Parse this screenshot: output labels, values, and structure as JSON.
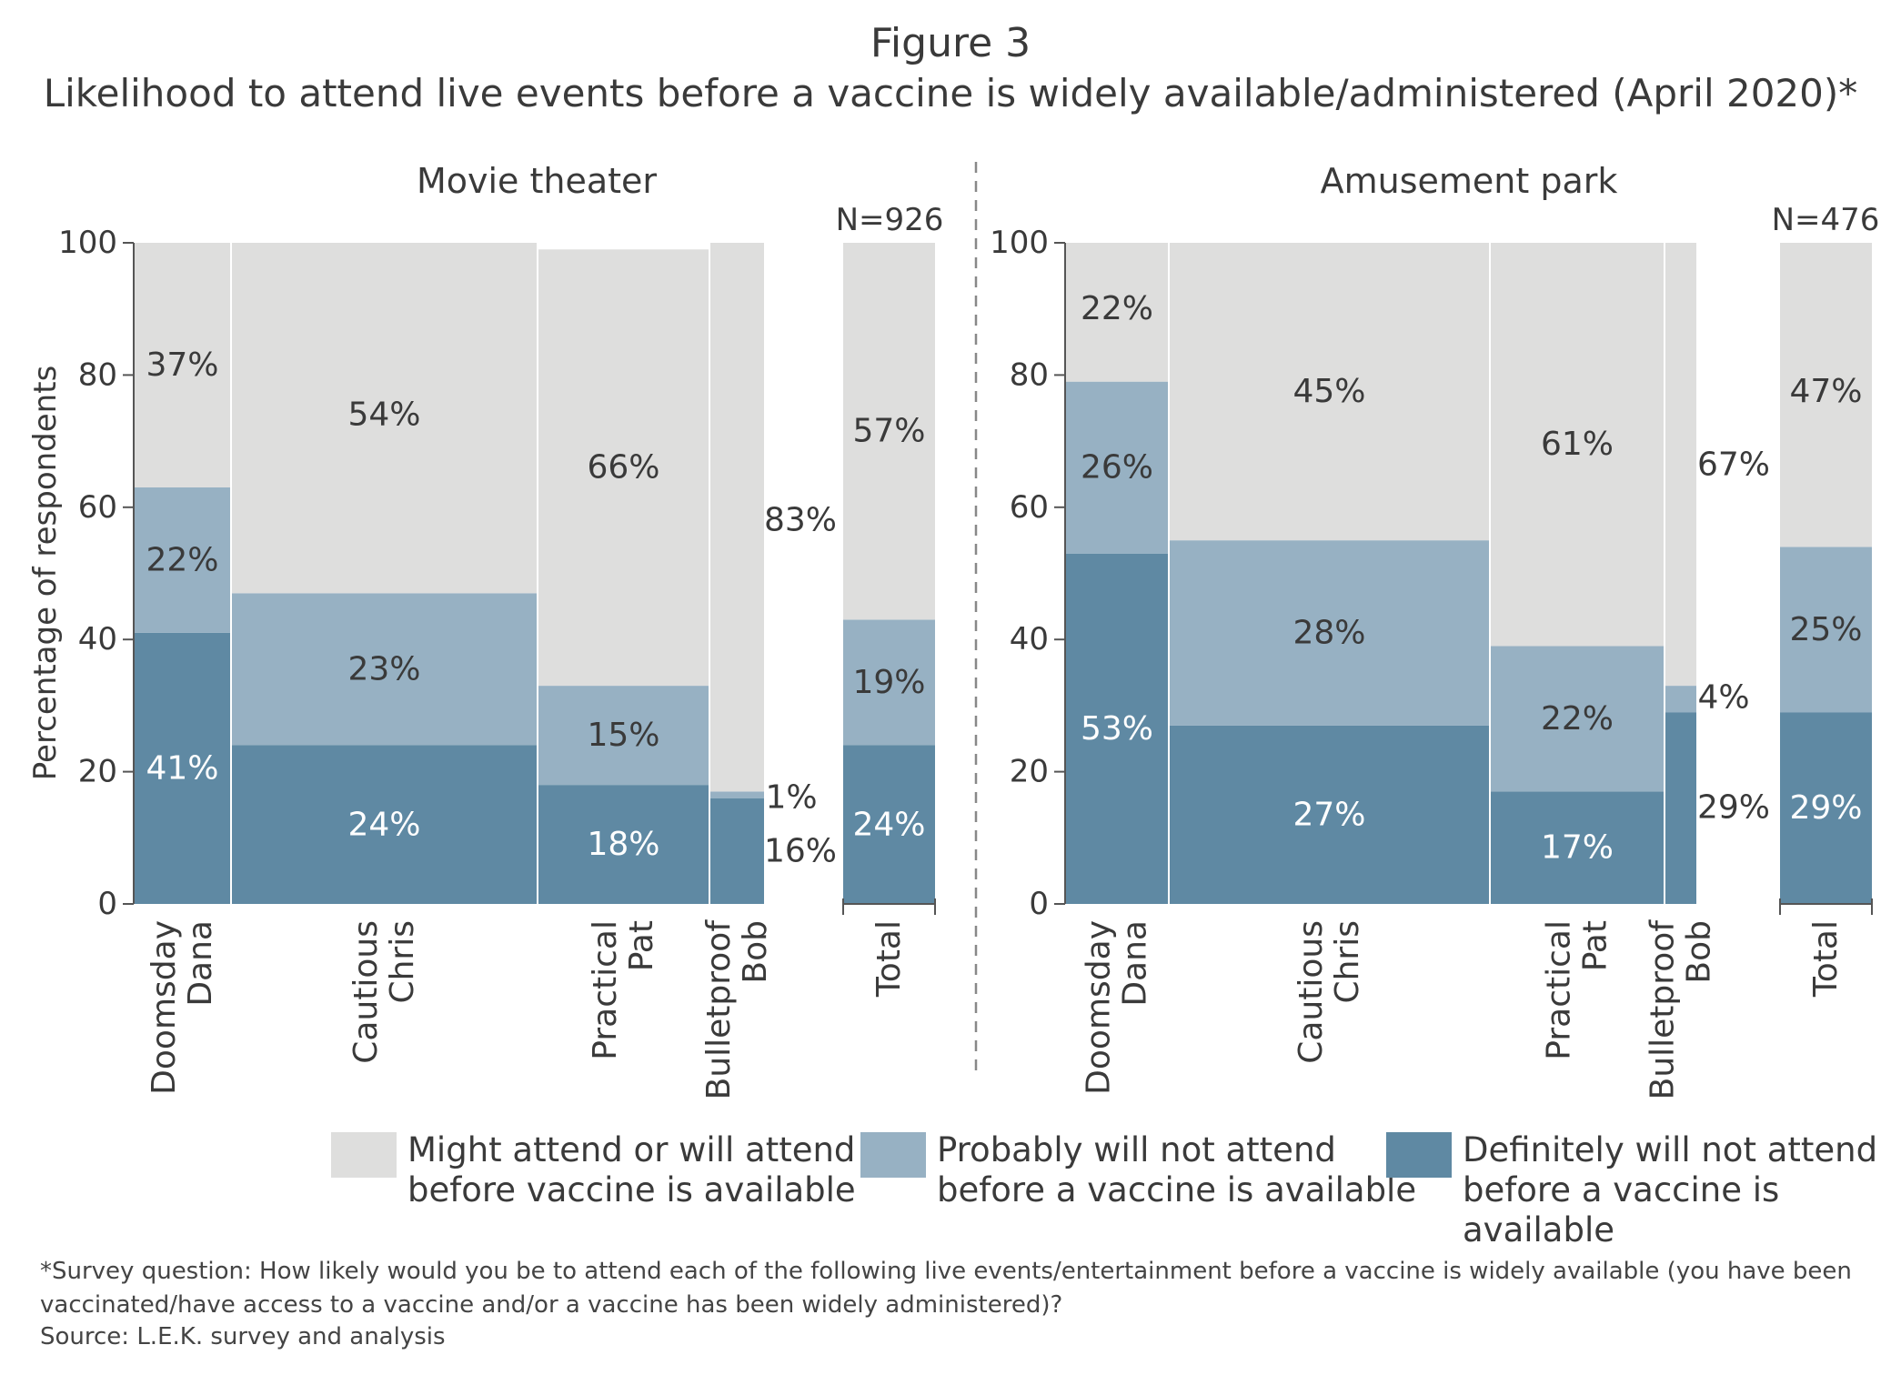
{
  "figure_label": "Figure 3",
  "chart_data": {
    "type": "bar",
    "subtype": "stacked marimekko (variable-width stacked bars)",
    "title": "Likelihood to attend live events before a vaccine is widely available/administered (April 2020)*",
    "ylabel": "Percentage of respondents",
    "ylim": [
      0,
      100
    ],
    "yticks": [
      0,
      20,
      40,
      60,
      80,
      100
    ],
    "grid": false,
    "stack_order": [
      "Definitely will not attend before a vaccine is available",
      "Probably will not attend before a vaccine is available",
      "Might attend or will attend before vaccine is available"
    ],
    "colors": {
      "definitely": "#5f89a3",
      "probably": "#97b1c3",
      "might": "#dededd"
    },
    "panels": [
      {
        "name": "Movie theater",
        "n_label": "N=926",
        "segments": [
          {
            "category": "Doomsday Dana",
            "definitely": 41,
            "probably": 22,
            "might": 37,
            "labels": {
              "definitely": "41%",
              "probably": "22%",
              "might": "37%"
            }
          },
          {
            "category": "Cautious Chris",
            "definitely": 24,
            "probably": 23,
            "might": 54,
            "labels": {
              "definitely": "24%",
              "probably": "23%",
              "might": "54%"
            }
          },
          {
            "category": "Practical Pat",
            "definitely": 18,
            "probably": 15,
            "might": 66,
            "labels": {
              "definitely": "18%",
              "probably": "15%",
              "might": "66%"
            }
          },
          {
            "category": "Bulletproof Bob",
            "definitely": 16,
            "probably": 1,
            "might": 83,
            "labels": {
              "definitely": "16%",
              "probably": "1%",
              "might": "83%"
            }
          }
        ],
        "total": {
          "category": "Total",
          "definitely": 24,
          "probably": 19,
          "might": 57,
          "labels": {
            "definitely": "24%",
            "probably": "19%",
            "might": "57%"
          }
        }
      },
      {
        "name": "Amusement park",
        "n_label": "N=476",
        "segments": [
          {
            "category": "Doomsday Dana",
            "definitely": 53,
            "probably": 26,
            "might": 22,
            "labels": {
              "definitely": "53%",
              "probably": "26%",
              "might": "22%"
            }
          },
          {
            "category": "Cautious Chris",
            "definitely": 27,
            "probably": 28,
            "might": 45,
            "labels": {
              "definitely": "27%",
              "probably": "28%",
              "might": "45%"
            }
          },
          {
            "category": "Practical Pat",
            "definitely": 17,
            "probably": 22,
            "might": 61,
            "labels": {
              "definitely": "17%",
              "probably": "22%",
              "might": "61%"
            }
          },
          {
            "category": "Bulletproof Bob",
            "definitely": 29,
            "probably": 4,
            "might": 67,
            "labels": {
              "definitely": "29%",
              "probably": "4%",
              "might": "67%"
            }
          }
        ],
        "total": {
          "category": "Total",
          "definitely": 29,
          "probably": 25,
          "might": 47,
          "labels": {
            "definitely": "29%",
            "probably": "25%",
            "might": "47%"
          }
        }
      }
    ]
  },
  "legend": [
    {
      "key": "might",
      "text": "Might attend or will attend\nbefore vaccine is available"
    },
    {
      "key": "probably",
      "text": "Probably will not attend\nbefore a vaccine is available"
    },
    {
      "key": "definitely",
      "text": "Definitely will not attend\nbefore a vaccine is available"
    }
  ],
  "footnote": "*Survey question: How likely would you be to attend each of the following live events/entertainment before a vaccine is widely available (you have been vaccinated/have access to a vaccine and/or a vaccine has been widely administered)?",
  "source": "Source: L.E.K. survey and analysis"
}
